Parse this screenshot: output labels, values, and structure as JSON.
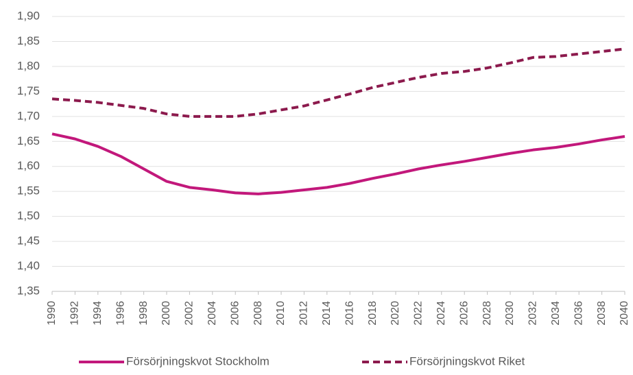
{
  "chart_data": {
    "type": "line",
    "x": [
      1990,
      1992,
      1994,
      1996,
      1998,
      2000,
      2002,
      2004,
      2006,
      2008,
      2010,
      2012,
      2014,
      2016,
      2018,
      2020,
      2022,
      2024,
      2026,
      2028,
      2030,
      2032,
      2034,
      2036,
      2038,
      2040
    ],
    "series": [
      {
        "name": "Försörjningskvot Stockholm",
        "color": "#c2187b",
        "dash": "solid",
        "values": [
          1.665,
          1.655,
          1.64,
          1.62,
          1.595,
          1.57,
          1.558,
          1.553,
          1.547,
          1.545,
          1.548,
          1.553,
          1.558,
          1.566,
          1.576,
          1.585,
          1.595,
          1.603,
          1.61,
          1.618,
          1.626,
          1.633,
          1.638,
          1.645,
          1.653,
          1.66
        ]
      },
      {
        "name": "Försörjningskvot Riket",
        "color": "#8c1a4d",
        "dash": "dashed",
        "values": [
          1.735,
          1.732,
          1.728,
          1.722,
          1.716,
          1.705,
          1.7,
          1.7,
          1.7,
          1.705,
          1.713,
          1.721,
          1.733,
          1.745,
          1.758,
          1.768,
          1.778,
          1.786,
          1.79,
          1.797,
          1.807,
          1.818,
          1.82,
          1.825,
          1.83,
          1.835
        ]
      }
    ],
    "xlim": [
      1990,
      2040
    ],
    "xticks": [
      1990,
      1992,
      1994,
      1996,
      1998,
      2000,
      2002,
      2004,
      2006,
      2008,
      2010,
      2012,
      2014,
      2016,
      2018,
      2020,
      2022,
      2024,
      2026,
      2028,
      2030,
      2032,
      2034,
      2036,
      2038,
      2040
    ],
    "ylim": [
      1.35,
      1.9
    ],
    "yticks": [
      {
        "value": 1.35,
        "label": "1,35"
      },
      {
        "value": 1.4,
        "label": "1,40"
      },
      {
        "value": 1.45,
        "label": "1,45"
      },
      {
        "value": 1.5,
        "label": "1,50"
      },
      {
        "value": 1.55,
        "label": "1,55"
      },
      {
        "value": 1.6,
        "label": "1,60"
      },
      {
        "value": 1.65,
        "label": "1,65"
      },
      {
        "value": 1.7,
        "label": "1,70"
      },
      {
        "value": 1.75,
        "label": "1,75"
      },
      {
        "value": 1.8,
        "label": "1,80"
      },
      {
        "value": 1.85,
        "label": "1,85"
      },
      {
        "value": 1.9,
        "label": "1,90"
      }
    ],
    "grid": true,
    "legend": "bottom"
  }
}
